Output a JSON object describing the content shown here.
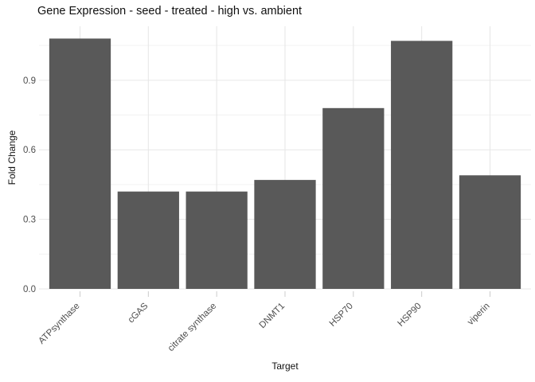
{
  "chart_data": {
    "type": "bar",
    "title": "Gene Expression - seed - treated - high vs. ambient",
    "xlabel": "Target",
    "ylabel": "Fold Change",
    "categories": [
      "ATPsynthase",
      "cGAS",
      "citrate synthase",
      "DNMT1",
      "HSP70",
      "HSP90",
      "viperin"
    ],
    "values": [
      1.08,
      0.42,
      0.42,
      0.47,
      0.78,
      1.07,
      0.49
    ],
    "ylim": [
      0,
      1.133
    ],
    "y_major_ticks": [
      0.0,
      0.3,
      0.6,
      0.9
    ],
    "y_tick_labels": [
      "0.0",
      "0.3",
      "0.6",
      "0.9"
    ],
    "y_minor_ticks": [
      0.15,
      0.45,
      0.75,
      1.05
    ],
    "grid": true,
    "legend": "none",
    "colors": {
      "bar": "#595959",
      "grid_major": "#e7e7e7",
      "grid_minor": "#f2f2f2",
      "tick_mark": "#cccccc",
      "axis_text": "#4d4d4d",
      "title_text": "#101010",
      "background": "#ffffff"
    }
  }
}
